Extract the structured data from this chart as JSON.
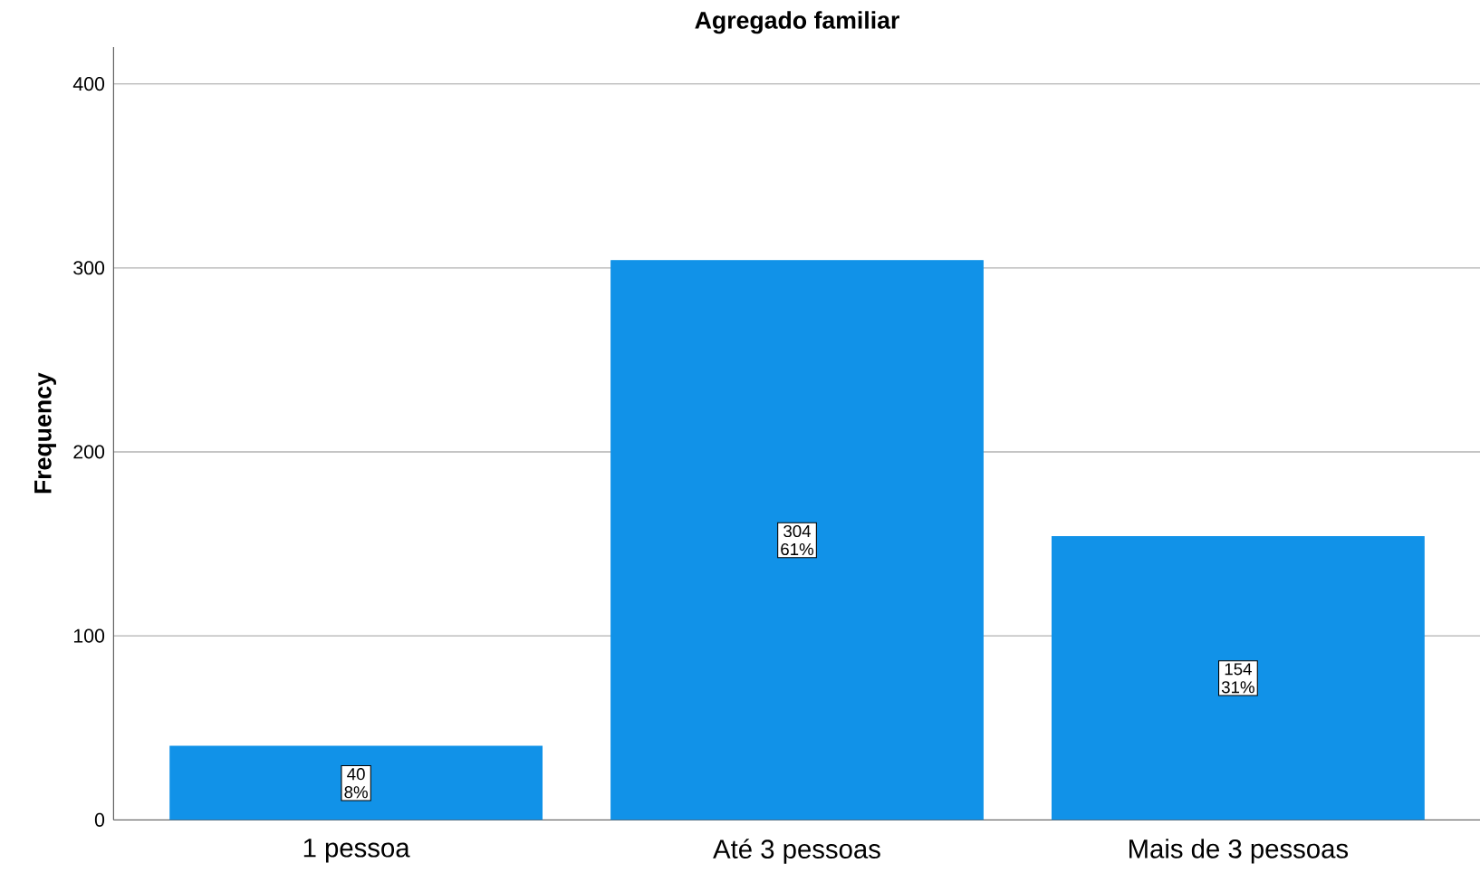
{
  "chart_data": {
    "type": "bar",
    "title": "Agregado familiar",
    "ylabel": "Frequency",
    "categories": [
      "1 pessoa",
      "Até 3 pessoas",
      "Mais de 3 pessoas"
    ],
    "values": [
      40,
      304,
      154
    ],
    "value_labels": [
      "40",
      "304",
      "154"
    ],
    "annotations": [
      {
        "text": "8%",
        "x": "1 pessoa",
        "y": 20
      },
      {
        "text": "61%",
        "x": "Até 3 pessoas",
        "y": 152
      },
      {
        "text": "31%",
        "x": "Mais de 3 pessoas",
        "y": 77
      }
    ],
    "color": "#1192e8",
    "ylim": [
      0,
      420
    ],
    "yticks": [
      0,
      100,
      200,
      300,
      400
    ],
    "grid": "y"
  }
}
